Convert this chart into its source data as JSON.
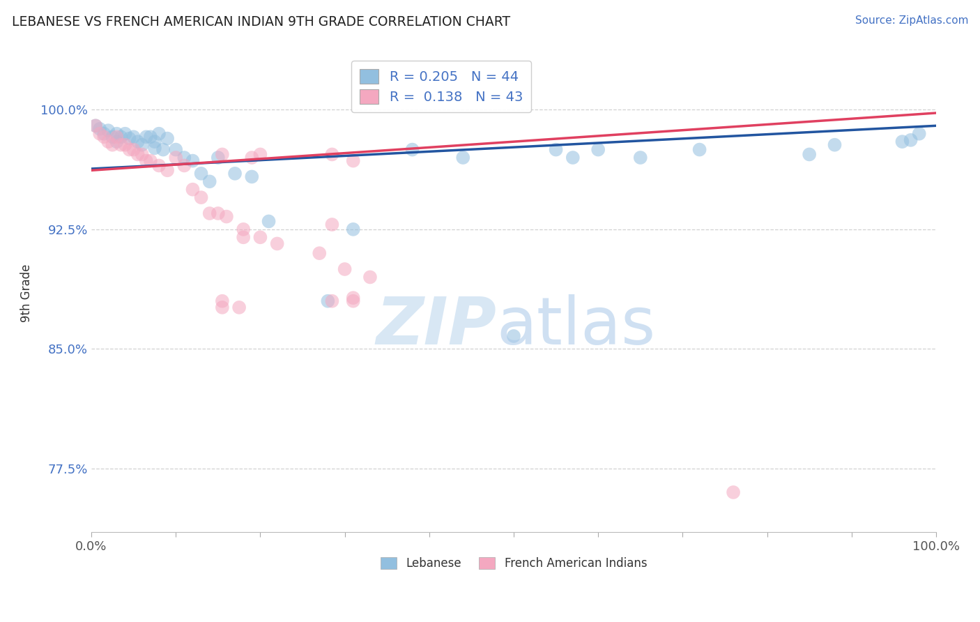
{
  "title": "LEBANESE VS FRENCH AMERICAN INDIAN 9TH GRADE CORRELATION CHART",
  "source_text": "Source: ZipAtlas.com",
  "ylabel": "9th Grade",
  "y_ticks": [
    0.775,
    0.85,
    0.925,
    1.0
  ],
  "y_tick_labels": [
    "77.5%",
    "85.0%",
    "92.5%",
    "100.0%"
  ],
  "xlim": [
    0.0,
    1.0
  ],
  "ylim": [
    0.735,
    1.035
  ],
  "legend_r_blue": "R = 0.205   N = 44",
  "legend_r_pink": "R =  0.138   N = 43",
  "legend_labels": [
    "Lebanese",
    "French American Indians"
  ],
  "watermark_zip": "ZIP",
  "watermark_atlas": "atlas",
  "blue_color": "#92bfdf",
  "pink_color": "#f4a8c0",
  "blue_line_color": "#2255a0",
  "pink_line_color": "#e04060",
  "blue_scatter_x": [
    0.005,
    0.01,
    0.015,
    0.02,
    0.025,
    0.03,
    0.03,
    0.035,
    0.04,
    0.045,
    0.05,
    0.055,
    0.06,
    0.065,
    0.07,
    0.075,
    0.075,
    0.08,
    0.085,
    0.09,
    0.1,
    0.11,
    0.12,
    0.13,
    0.14,
    0.15,
    0.17,
    0.19,
    0.21,
    0.28,
    0.31,
    0.38,
    0.44,
    0.5,
    0.55,
    0.57,
    0.6,
    0.65,
    0.72,
    0.85,
    0.88,
    0.96,
    0.97,
    0.98
  ],
  "blue_scatter_y": [
    0.99,
    0.988,
    0.985,
    0.987,
    0.983,
    0.985,
    0.98,
    0.983,
    0.985,
    0.982,
    0.983,
    0.98,
    0.978,
    0.983,
    0.983,
    0.98,
    0.976,
    0.985,
    0.975,
    0.982,
    0.975,
    0.97,
    0.968,
    0.96,
    0.955,
    0.97,
    0.96,
    0.958,
    0.93,
    0.88,
    0.925,
    0.975,
    0.97,
    0.858,
    0.975,
    0.97,
    0.975,
    0.97,
    0.975,
    0.972,
    0.978,
    0.98,
    0.981,
    0.985
  ],
  "pink_scatter_x": [
    0.005,
    0.01,
    0.015,
    0.02,
    0.025,
    0.03,
    0.035,
    0.04,
    0.045,
    0.05,
    0.055,
    0.06,
    0.065,
    0.07,
    0.08,
    0.09,
    0.1,
    0.11,
    0.12,
    0.13,
    0.14,
    0.15,
    0.16,
    0.18,
    0.2,
    0.22,
    0.27,
    0.3,
    0.33,
    0.2,
    0.285,
    0.31,
    0.155,
    0.175,
    0.18,
    0.19,
    0.155,
    0.285,
    0.31,
    0.76,
    0.155,
    0.285,
    0.31
  ],
  "pink_scatter_y": [
    0.99,
    0.985,
    0.983,
    0.98,
    0.978,
    0.983,
    0.978,
    0.978,
    0.975,
    0.975,
    0.972,
    0.972,
    0.968,
    0.968,
    0.965,
    0.962,
    0.97,
    0.965,
    0.95,
    0.945,
    0.935,
    0.935,
    0.933,
    0.925,
    0.92,
    0.916,
    0.91,
    0.9,
    0.895,
    0.972,
    0.928,
    0.882,
    0.876,
    0.876,
    0.92,
    0.97,
    0.972,
    0.972,
    0.968,
    0.76,
    0.88,
    0.88,
    0.88
  ],
  "r_blue": 0.205,
  "r_pink": 0.138,
  "n_blue": 44,
  "n_pink": 43
}
